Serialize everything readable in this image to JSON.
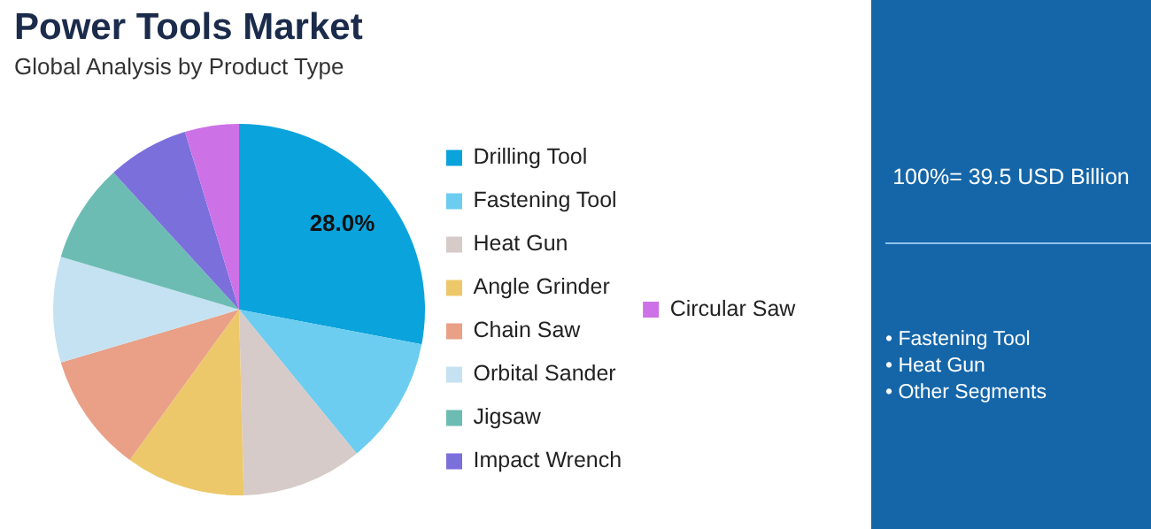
{
  "chart_data": {
    "type": "pie",
    "title": "Power Tools Market",
    "subtitle": "Global Analysis by Product Type",
    "categories": [
      "Drilling Tool",
      "Fastening Tool",
      "Heat Gun",
      "Angle Grinder",
      "Chain Saw",
      "Orbital Sander",
      "Jigsaw",
      "Impact Wrench",
      "Circular Saw"
    ],
    "values": [
      28.0,
      11.1,
      10.5,
      10.4,
      10.4,
      9.2,
      8.6,
      7.1,
      4.7
    ],
    "colors": [
      "#0aa3dc",
      "#6ccdf0",
      "#d6cbc8",
      "#ecc86a",
      "#e9a087",
      "#c5e2f2",
      "#6cbcb3",
      "#7b6fdc",
      "#cc72e6"
    ],
    "value_labels": [
      "28.0%",
      null,
      null,
      null,
      null,
      null,
      null,
      null,
      null
    ],
    "legend": "right",
    "annotations": [
      "100%= 39.5 USD Billion",
      "• Fastening Tool",
      "• Heat Gun",
      "• Other Segments"
    ]
  }
}
